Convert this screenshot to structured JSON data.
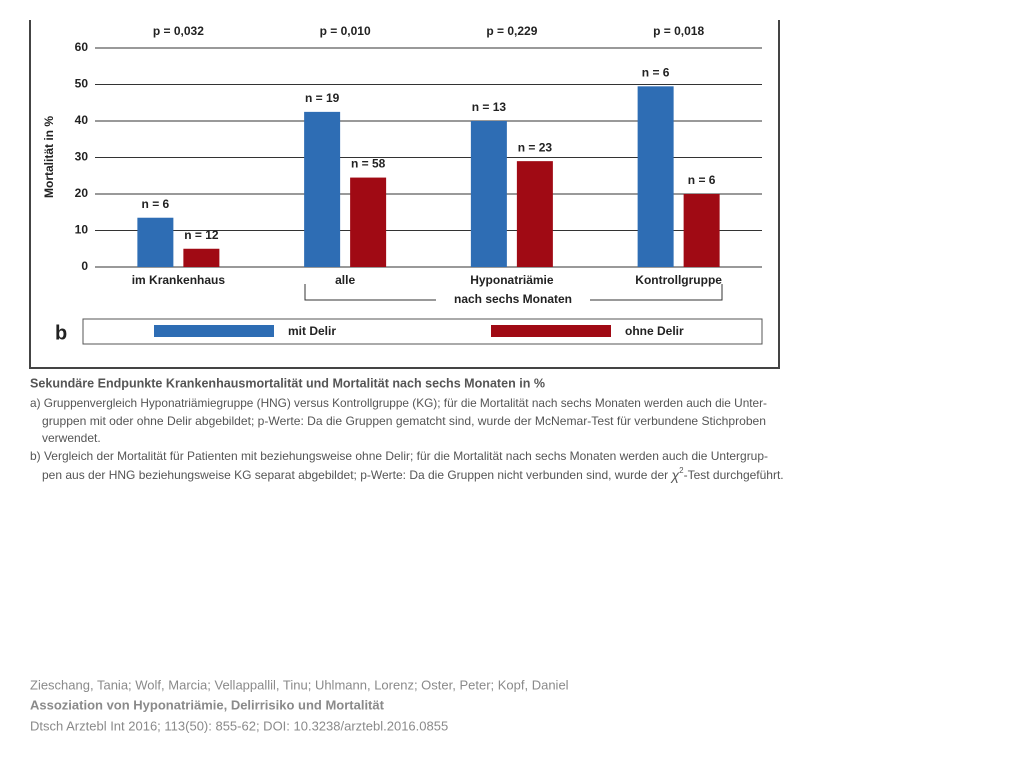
{
  "chart_data": {
    "type": "bar",
    "panel_label": "b",
    "y_label": "Mortalität in %",
    "categories": [
      "im Krankenhaus",
      "alle",
      "Hyponatriämie",
      "Kontrollgruppe"
    ],
    "p_values": [
      "p = 0,032",
      "p = 0,010",
      "p = 0,229",
      "p = 0,018"
    ],
    "group_label": "nach sechs Monaten",
    "series": [
      {
        "name": "mit Delir",
        "color": "#2e6db4",
        "values": [
          13.5,
          42.5,
          40,
          49.5
        ],
        "n_labels": [
          "n = 6",
          "n = 19",
          "n = 13",
          "n = 6"
        ]
      },
      {
        "name": "ohne Delir",
        "color": "#a00a14",
        "values": [
          5,
          24.5,
          29,
          20
        ],
        "n_labels": [
          "n = 12",
          "n = 58",
          "n = 23",
          "n = 6"
        ]
      }
    ],
    "ylim": [
      0,
      60
    ],
    "yticks": [
      0,
      10,
      20,
      30,
      40,
      50,
      60
    ],
    "grid": true
  },
  "caption": {
    "title": "Sekundäre Endpunkte Krankenhausmortalität und Mortalität nach sechs Monaten in %",
    "a": [
      "a) Gruppenvergleich Hyponatriämiegruppe (HNG) versus Kontrollgruppe (KG); für die Mortalität nach sechs Monaten werden auch die Unter-",
      "gruppen mit oder ohne Delir abgebildet; p-Werte: Da die Gruppen gematcht sind, wurde der McNemar-Test für verbundene Stichproben",
      "verwendet."
    ],
    "b_first": "b) Vergleich der Mortalität für Patienten mit beziehungsweise ohne Delir; für die Mortalität nach sechs Monaten werden auch die Untergrup-",
    "b_last": {
      "text": "pen aus der HNG beziehungsweise KG separat abgebildet; p-Werte: Da die Gruppen nicht verbunden sind, wurde der ",
      "symbol": "χ",
      "sup": "2",
      "rest": "-Test durchgeführt."
    }
  },
  "citation": {
    "authors": "Zieschang, Tania; Wolf, Marcia; Vellappallil, Tinu; Uhlmann, Lorenz; Oster, Peter; Kopf, Daniel",
    "title": "Assoziation von Hyponatriämie, Delirrisiko und Mortalität",
    "source": "Dtsch Arztebl Int 2016; 113(50): 855-62; DOI: 10.3238/arztebl.2016.0855"
  }
}
